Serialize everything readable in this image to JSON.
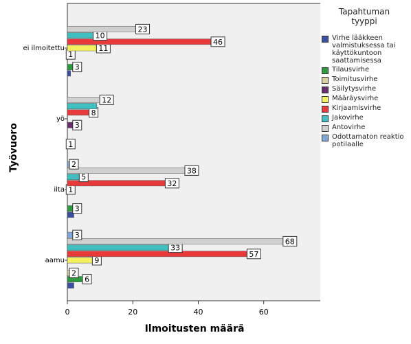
{
  "chart_data": {
    "type": "barh",
    "x_label": "Ilmoitusten määrä",
    "y_label": "Työvuoro",
    "legend_title": "Tapahtuman tyyppi",
    "categories": [
      "aamu",
      "ilta",
      "yö",
      "ei ilmoitettu"
    ],
    "xlim": [
      0,
      77.7
    ],
    "xticks": [
      0,
      20,
      40,
      60
    ],
    "series": [
      {
        "name": "Virhe lääkkeen valmistuksessa tai käyttökuntoon saattamisessa",
        "color": "#3b4fa0",
        "values": [
          2,
          2,
          1,
          1
        ],
        "value_labels": [
          null,
          null,
          "1",
          null
        ]
      },
      {
        "name": "Tilausvirhe",
        "color": "#2e9a3f",
        "values": [
          6,
          3,
          null,
          3
        ],
        "value_labels": [
          "6",
          "3",
          null,
          "3"
        ]
      },
      {
        "name": "Toimitusvirhe",
        "color": "#d8d3a0",
        "values": [
          2,
          null,
          null,
          null
        ],
        "value_labels": [
          "2",
          null,
          null,
          null
        ]
      },
      {
        "name": "Säilytysvirhe",
        "color": "#6a2d6e",
        "values": [
          null,
          null,
          3,
          1
        ],
        "value_labels": [
          null,
          null,
          "3",
          "1"
        ]
      },
      {
        "name": "Määräysvirhe",
        "color": "#f5f060",
        "values": [
          9,
          1,
          null,
          11
        ],
        "value_labels": [
          "9",
          "1",
          null,
          "11"
        ]
      },
      {
        "name": "Kirjaamisvirhe",
        "color": "#e83a3a",
        "values": [
          57,
          32,
          8,
          46
        ],
        "value_labels": [
          "57",
          "32",
          "8",
          "46"
        ]
      },
      {
        "name": "Jakovirhe",
        "color": "#3fbfbf",
        "values": [
          33,
          5,
          9,
          10
        ],
        "value_labels": [
          "33",
          "5",
          null,
          "10"
        ]
      },
      {
        "name": "Antovirhe",
        "color": "#d0d0d0",
        "values": [
          68,
          38,
          12,
          23
        ],
        "value_labels": [
          "68",
          "38",
          "12",
          "23"
        ]
      },
      {
        "name": "Odottamaton reaktio potilaalle",
        "color": "#7fa7d8",
        "values": [
          3,
          2,
          null,
          null
        ],
        "value_labels": [
          "3",
          "2",
          null,
          null
        ]
      }
    ]
  }
}
